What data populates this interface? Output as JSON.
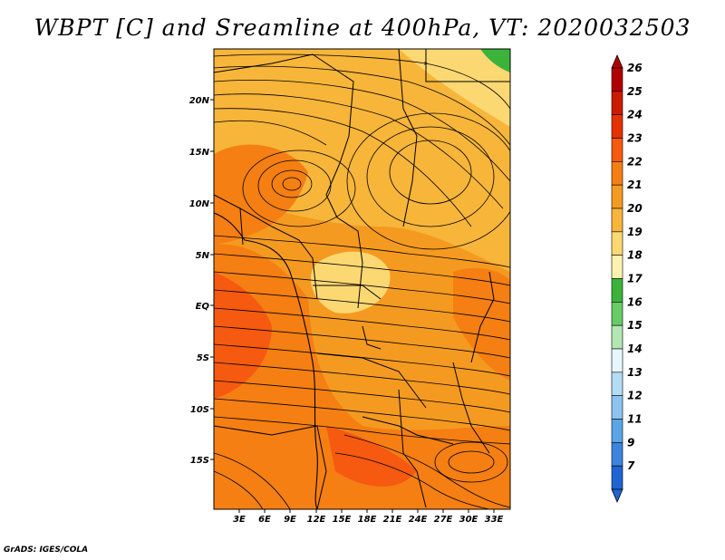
{
  "title": "WBPT [C] and Sreamline at 400hPa, VT: 2020032503",
  "credit": "GrADS: IGES/COLA",
  "map": {
    "lat_labels": [
      "20N",
      "15N",
      "10N",
      "5N",
      "EQ",
      "5S",
      "10S",
      "15S"
    ],
    "lon_labels": [
      "3E",
      "6E",
      "9E",
      "12E",
      "15E",
      "18E",
      "21E",
      "24E",
      "27E",
      "30E",
      "33E"
    ]
  },
  "colorbar": {
    "labels": [
      "26",
      "25",
      "24",
      "23",
      "22",
      "21",
      "20",
      "19",
      "18",
      "17",
      "16",
      "15",
      "14",
      "13",
      "12",
      "11",
      "9",
      "7"
    ],
    "colors": [
      "#b20000",
      "#cc1a00",
      "#e63200",
      "#f55a10",
      "#f57f12",
      "#f59a20",
      "#f7b53a",
      "#fcd873",
      "#fff2b0",
      "#3bb33b",
      "#66cc66",
      "#b2e6b2",
      "#e6f7ff",
      "#b3dcf5",
      "#8cc4f0",
      "#5aa5e8",
      "#3b85de",
      "#1e64d2"
    ]
  }
}
